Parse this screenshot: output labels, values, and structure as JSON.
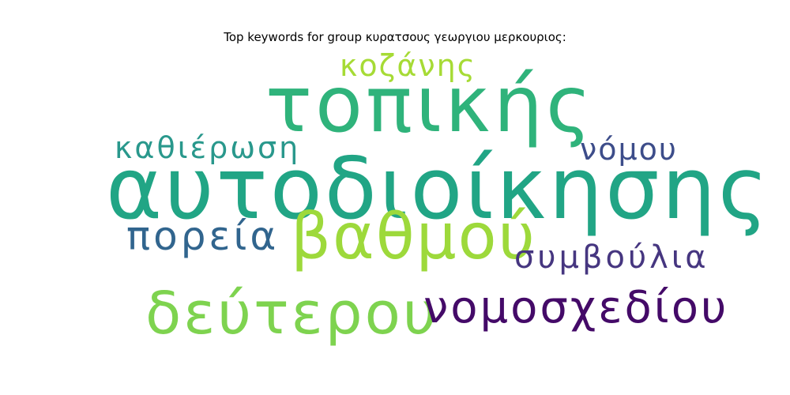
{
  "title": "Top keywords for group κυρατσους γεωργιου μερκουριος:",
  "words": [
    {
      "text": "αυτοδιοίκησης",
      "color": "#21a585"
    },
    {
      "text": "τοπικής",
      "color": "#2fb37b"
    },
    {
      "text": "βαθμού",
      "color": "#9dd93b"
    },
    {
      "text": "δεύτερου",
      "color": "#7ed34f"
    },
    {
      "text": "νομοσχεδίου",
      "color": "#440a68"
    },
    {
      "text": "πορεία",
      "color": "#31658e"
    },
    {
      "text": "συμβούλια",
      "color": "#463680"
    },
    {
      "text": "καθιέρωση",
      "color": "#29988c"
    },
    {
      "text": "νόμου",
      "color": "#3d4d8a"
    },
    {
      "text": "κοζάνης",
      "color": "#a6db35"
    }
  ]
}
